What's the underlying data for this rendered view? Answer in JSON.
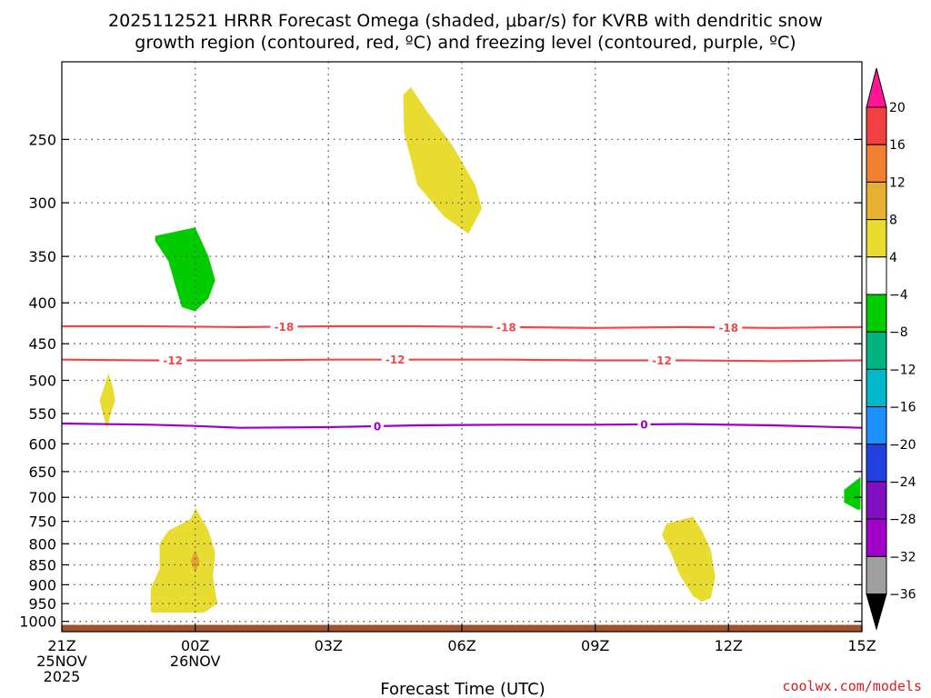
{
  "title_line1": "2025112521 HRRR Forecast Omega (shaded, μbar/s) for KVRB with dendritic snow",
  "title_line2": "growth region (contoured, red, ºC) and freezing level (contoured, purple, ºC)",
  "credit": "coolwx.com/models",
  "chart_data": {
    "type": "contour",
    "title": "2025112521 HRRR Forecast Omega (shaded, μbar/s) for KVRB with dendritic snow growth region (contoured, red, ºC) and freezing level (contoured, purple, ºC)",
    "xlabel": "Forecast Time (UTC)",
    "ylabel": "",
    "x_unit": "forecast hour",
    "xlim": [
      0,
      18
    ],
    "x_ticks": [
      {
        "hour": 0,
        "lines": [
          "21Z",
          "25NOV",
          "2025"
        ]
      },
      {
        "hour": 3,
        "lines": [
          "00Z",
          "26NOV"
        ]
      },
      {
        "hour": 6,
        "lines": [
          "03Z"
        ]
      },
      {
        "hour": 9,
        "lines": [
          "06Z"
        ]
      },
      {
        "hour": 12,
        "lines": [
          "09Z"
        ]
      },
      {
        "hour": 15,
        "lines": [
          "12Z"
        ]
      },
      {
        "hour": 18,
        "lines": [
          "15Z"
        ]
      }
    ],
    "y_unit": "hPa",
    "y_scale": "log-pressure",
    "ylim": [
      1030,
      200
    ],
    "y_ticks": [
      250,
      300,
      350,
      400,
      450,
      500,
      550,
      600,
      650,
      700,
      750,
      800,
      850,
      900,
      950,
      1000
    ],
    "grid": true,
    "colorbar": {
      "labels": [
        20,
        16,
        12,
        8,
        4,
        -4,
        -8,
        -12,
        -16,
        -20,
        -24,
        -28,
        -32,
        -36
      ],
      "colors": [
        "#ff1493",
        "#f04040",
        "#f08030",
        "#e8b030",
        "#e8dc30",
        "#ffffff",
        "#00cc00",
        "#00b380",
        "#00b8c8",
        "#1e90ff",
        "#2040e0",
        "#8010c0",
        "#a000c8",
        "#a0a0a0",
        "#000000"
      ]
    },
    "contours": [
      {
        "value": -18,
        "color": "#f04848",
        "label": "-18",
        "points": [
          [
            0,
            428
          ],
          [
            2,
            428
          ],
          [
            4,
            429
          ],
          [
            6,
            428
          ],
          [
            8,
            428
          ],
          [
            10,
            429
          ],
          [
            12,
            430
          ],
          [
            14,
            429
          ],
          [
            16,
            430
          ],
          [
            18,
            429
          ]
        ],
        "label_hours": [
          5,
          10,
          15
        ]
      },
      {
        "value": -12,
        "color": "#f04848",
        "label": "-12",
        "points": [
          [
            0,
            471
          ],
          [
            2,
            472
          ],
          [
            4,
            472
          ],
          [
            6,
            471
          ],
          [
            8,
            471
          ],
          [
            10,
            471
          ],
          [
            12,
            472
          ],
          [
            14,
            472
          ],
          [
            16,
            473
          ],
          [
            18,
            472
          ]
        ],
        "label_hours": [
          2.5,
          7.5,
          13.5
        ]
      },
      {
        "value": 0,
        "color": "#9900cc",
        "label": "0",
        "points": [
          [
            0,
            566
          ],
          [
            2,
            568
          ],
          [
            3,
            570
          ],
          [
            4,
            573
          ],
          [
            6,
            572
          ],
          [
            8,
            569
          ],
          [
            10,
            568
          ],
          [
            12,
            568
          ],
          [
            14,
            567
          ],
          [
            16,
            569
          ],
          [
            18,
            573
          ]
        ],
        "label_hours": [
          7.1,
          13.1
        ]
      }
    ],
    "shaded_regions": [
      {
        "level": 4,
        "color": "#e8dc30",
        "points": [
          [
            7.85,
            215
          ],
          [
            8.2,
            230
          ],
          [
            8.8,
            255
          ],
          [
            9.3,
            285
          ],
          [
            9.45,
            305
          ],
          [
            9.15,
            328
          ],
          [
            8.6,
            312
          ],
          [
            8.0,
            285
          ],
          [
            7.7,
            245
          ],
          [
            7.68,
            220
          ]
        ]
      },
      {
        "level": -4,
        "color": "#00cc00",
        "points": [
          [
            2.1,
            330
          ],
          [
            3.0,
            322
          ],
          [
            3.3,
            350
          ],
          [
            3.45,
            375
          ],
          [
            3.3,
            395
          ],
          [
            3.0,
            410
          ],
          [
            2.7,
            405
          ],
          [
            2.55,
            380
          ],
          [
            2.4,
            355
          ],
          [
            2.1,
            335
          ]
        ]
      },
      {
        "level": 4,
        "color": "#e8dc30",
        "points": [
          [
            1.05,
            490
          ],
          [
            1.15,
            510
          ],
          [
            1.2,
            530
          ],
          [
            1.1,
            550
          ],
          [
            1.02,
            575
          ],
          [
            0.92,
            550
          ],
          [
            0.85,
            530
          ],
          [
            0.95,
            510
          ]
        ]
      },
      {
        "level": 4,
        "color": "#e8dc30",
        "points": [
          [
            3.0,
            720
          ],
          [
            3.3,
            770
          ],
          [
            3.45,
            820
          ],
          [
            3.4,
            880
          ],
          [
            3.5,
            950
          ],
          [
            3.2,
            975
          ],
          [
            2.0,
            975
          ],
          [
            2.0,
            910
          ],
          [
            2.2,
            860
          ],
          [
            2.2,
            800
          ],
          [
            2.4,
            770
          ],
          [
            2.9,
            745
          ],
          [
            3.0,
            725
          ]
        ]
      },
      {
        "level": 8,
        "color": "#e8a030",
        "points": [
          [
            3.0,
            815
          ],
          [
            3.1,
            840
          ],
          [
            3.0,
            870
          ],
          [
            2.9,
            840
          ]
        ]
      },
      {
        "level": 4,
        "color": "#e8dc30",
        "points": [
          [
            14.2,
            740
          ],
          [
            14.4,
            770
          ],
          [
            14.6,
            815
          ],
          [
            14.7,
            880
          ],
          [
            14.6,
            935
          ],
          [
            14.4,
            945
          ],
          [
            14.2,
            930
          ],
          [
            13.9,
            875
          ],
          [
            13.7,
            820
          ],
          [
            13.5,
            780
          ],
          [
            13.6,
            755
          ],
          [
            14.0,
            745
          ]
        ]
      },
      {
        "level": -4,
        "color": "#00cc00",
        "points": [
          [
            17.97,
            660
          ],
          [
            17.6,
            685
          ],
          [
            17.6,
            710
          ],
          [
            17.9,
            725
          ],
          [
            17.97,
            725
          ]
        ]
      }
    ],
    "terrain": {
      "color": "#a0522d",
      "pressure_top": 1010
    }
  }
}
